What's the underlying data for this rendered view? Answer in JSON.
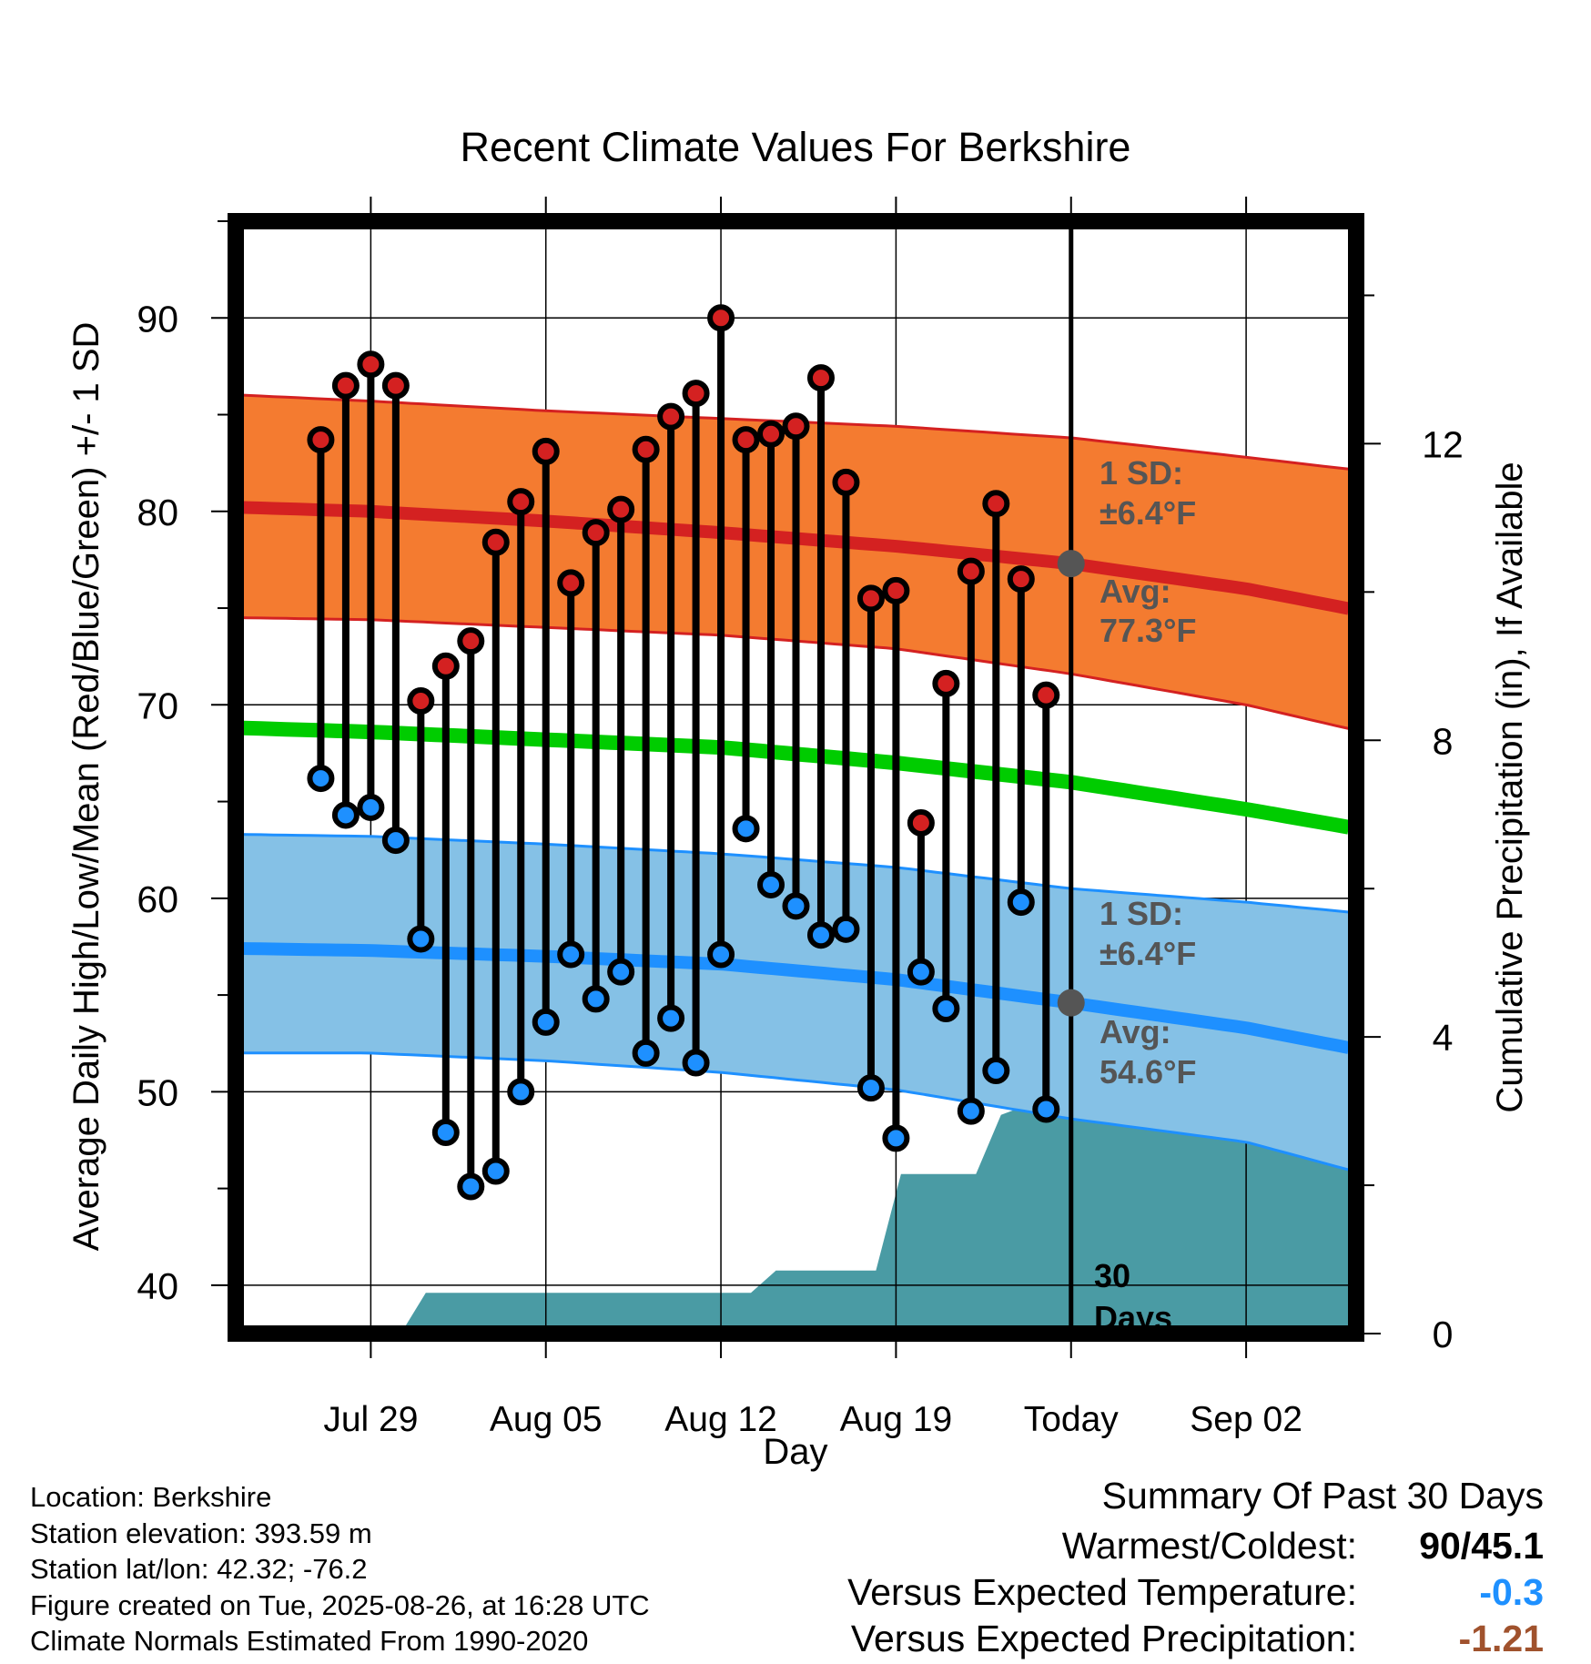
{
  "title": "Recent Climate Values For Berkshire",
  "y_label_left": "Average Daily High/Low/Mean (Red/Blue/Green) +/- 1 SD",
  "y_label_right": "Cumulative Precipitation (in), If Available",
  "x_label": "Day",
  "x_ticks": [
    "Jul 29",
    "Aug 05",
    "Aug 12",
    "Aug 19",
    "Today",
    "Sep 02"
  ],
  "left_ticks": [
    "40",
    "50",
    "60",
    "70",
    "80",
    "90"
  ],
  "right_ticks": [
    "0",
    "4",
    "8",
    "12"
  ],
  "annotations": {
    "high_sd_line1": "1 SD:",
    "high_sd_line2": "±6.4°F",
    "high_avg_line1": "Avg:",
    "high_avg_line2": "77.3°F",
    "low_sd_line1": "1 SD:",
    "low_sd_line2": "±6.4°F",
    "low_avg_line1": "Avg:",
    "low_avg_line2": "54.6°F",
    "days_line1": "30",
    "days_line2": "Days"
  },
  "info": {
    "location": "Location: Berkshire",
    "elevation": "Station elevation: 393.59 m",
    "latlon": "Station lat/lon: 42.32; -76.2",
    "created": "Figure created on Tue, 2025-08-26, at 16:28 UTC",
    "normals": "Climate Normals Estimated From 1990-2020"
  },
  "summary": {
    "heading": "Summary Of Past 30 Days",
    "warm_cold_label": "Warmest/Coldest:",
    "warm_cold_value": "90/45.1",
    "temp_label": "Versus Expected Temperature:",
    "temp_value": "-0.3",
    "precip_label": "Versus Expected Precipitation:",
    "precip_value": "-1.21"
  },
  "colors": {
    "high_band": "#f47b30",
    "high_line": "#d42121",
    "low_band": "#85c1e6",
    "low_line": "#1e90ff",
    "mean_line": "#00cc00",
    "precip": "#4a9ba4",
    "high_dot": "#d42121",
    "low_dot": "#1e90ff",
    "temp_value": "#1e90ff",
    "precip_value": "#a0522d",
    "annotation": "#555555"
  },
  "chart_data": {
    "type": "line",
    "x_range_days": [
      -33.4,
      11.4
    ],
    "x_tick_days": [
      -28,
      -21,
      -14,
      -7,
      0,
      7
    ],
    "y_left_range": [
      37.5,
      95
    ],
    "y_right_range": [
      0,
      15
    ],
    "days": [
      -30,
      -29,
      -28,
      -27,
      -26,
      -25,
      -24,
      -23,
      -22,
      -21,
      -20,
      -19,
      -18,
      -17,
      -16,
      -15,
      -14,
      -13,
      -12,
      -11,
      -10,
      -9,
      -8,
      -7,
      -6,
      -5,
      -4,
      -3,
      -2,
      -1
    ],
    "daily_high": [
      83.7,
      86.5,
      87.6,
      86.5,
      70.2,
      72.0,
      73.3,
      78.4,
      80.5,
      83.1,
      76.3,
      78.9,
      80.1,
      83.2,
      84.9,
      86.1,
      90.0,
      83.7,
      84.0,
      84.4,
      86.9,
      81.5,
      75.5,
      75.9,
      63.9,
      71.1,
      76.9,
      80.4,
      76.5,
      70.5
    ],
    "daily_low": [
      66.2,
      64.3,
      64.7,
      63.0,
      57.9,
      47.9,
      45.1,
      45.9,
      50.0,
      53.6,
      57.1,
      54.8,
      56.2,
      52.0,
      53.8,
      51.5,
      57.1,
      63.6,
      60.7,
      59.6,
      58.1,
      58.4,
      50.2,
      47.6,
      56.2,
      54.3,
      49.0,
      51.1,
      59.8,
      49.1
    ],
    "normal_high": {
      "days": [
        -33,
        -28,
        -21,
        -14,
        -7,
        0,
        7,
        11
      ],
      "mean": [
        80.2,
        80.0,
        79.5,
        78.9,
        78.2,
        77.3,
        76.0,
        75.0
      ],
      "upper": [
        86.0,
        85.7,
        85.2,
        84.8,
        84.4,
        83.8,
        82.8,
        82.2
      ],
      "lower": [
        74.5,
        74.4,
        74.0,
        73.6,
        72.9,
        71.6,
        70.0,
        68.8
      ]
    },
    "normal_low": {
      "days": [
        -33,
        -28,
        -21,
        -14,
        -7,
        0,
        7,
        11
      ],
      "mean": [
        57.4,
        57.3,
        57.0,
        56.6,
        55.8,
        54.6,
        53.3,
        52.3
      ],
      "upper": [
        63.3,
        63.2,
        62.8,
        62.3,
        61.6,
        60.5,
        59.8,
        59.3
      ],
      "lower": [
        52.0,
        52.0,
        51.6,
        51.0,
        50.1,
        48.6,
        47.4,
        46.0
      ]
    },
    "normal_mean": {
      "days": [
        -33,
        -28,
        -21,
        -14,
        -7,
        0,
        7,
        11
      ],
      "values": [
        68.8,
        68.6,
        68.2,
        67.8,
        67.0,
        66.0,
        64.6,
        63.7
      ]
    },
    "precip_cumulative": {
      "days": [
        -33.4,
        -26.8,
        -25.8,
        -12.8,
        -11.8,
        -7.8,
        -6.8,
        -3.8,
        -2.8,
        -2.0,
        -1.0,
        11.4
      ],
      "values": [
        0,
        0,
        0.55,
        0.55,
        0.85,
        0.85,
        2.15,
        2.15,
        2.95,
        3.05,
        3.05,
        3.05
      ]
    }
  }
}
